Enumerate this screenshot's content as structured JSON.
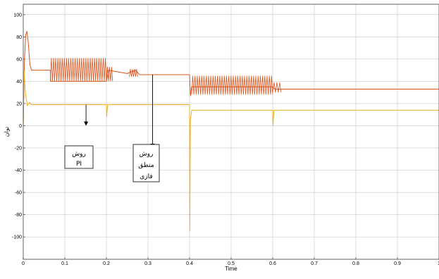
{
  "chart_data": {
    "type": "line",
    "xlabel": "Time",
    "ylabel": "توان",
    "xlim": [
      0,
      1
    ],
    "ylim": [
      -110,
      105
    ],
    "xticks": [
      "0",
      "0.1",
      "0.2",
      "0.3",
      "0.4",
      "0.5",
      "0.6",
      "0.7",
      "0.8",
      "0.9",
      "1"
    ],
    "yticks": [
      "100",
      "80",
      "60",
      "40",
      "20",
      "0",
      "-20",
      "-40",
      "-60",
      "-80",
      "-100"
    ],
    "grid": true,
    "series": [
      {
        "color": "#d9541e",
        "points": [
          [
            0.0,
            0
          ],
          [
            0.003,
            60
          ],
          [
            0.006,
            82
          ],
          [
            0.009,
            85
          ],
          [
            0.012,
            75
          ],
          [
            0.016,
            55
          ],
          [
            0.02,
            50
          ],
          [
            0.065,
            50
          ],
          [
            0.066,
            40
          ],
          [
            0.2,
            40
          ],
          [
            0.205,
            50
          ],
          [
            0.25,
            47
          ],
          [
            0.27,
            50
          ],
          [
            0.28,
            46
          ],
          [
            0.4,
            46
          ],
          [
            0.402,
            27
          ],
          [
            0.405,
            35
          ],
          [
            0.6,
            35
          ],
          [
            0.605,
            33
          ],
          [
            0.62,
            33
          ],
          [
            1.0,
            33
          ]
        ],
        "oscillations": [
          {
            "x_start": 0.065,
            "x_end": 0.2,
            "y_min": 40,
            "y_max": 61,
            "cycles": 26
          },
          {
            "x_start": 0.2,
            "x_end": 0.215,
            "y_min": 40,
            "y_max": 53,
            "cycles": 3
          },
          {
            "x_start": 0.255,
            "x_end": 0.275,
            "y_min": 44,
            "y_max": 51,
            "cycles": 4
          },
          {
            "x_start": 0.405,
            "x_end": 0.6,
            "y_min": 28,
            "y_max": 45,
            "cycles": 36
          },
          {
            "x_start": 0.6,
            "x_end": 0.62,
            "y_min": 30,
            "y_max": 39,
            "cycles": 3
          }
        ]
      },
      {
        "color": "#edb120",
        "points": [
          [
            0.0,
            0
          ],
          [
            0.002,
            50
          ],
          [
            0.005,
            30
          ],
          [
            0.01,
            18
          ],
          [
            0.015,
            21
          ],
          [
            0.02,
            19
          ],
          [
            0.2,
            19
          ],
          [
            0.2005,
            8
          ],
          [
            0.203,
            19
          ],
          [
            0.4,
            19
          ],
          [
            0.4005,
            -95
          ],
          [
            0.402,
            5
          ],
          [
            0.405,
            14
          ],
          [
            0.6,
            14
          ],
          [
            0.6005,
            0
          ],
          [
            0.603,
            14
          ],
          [
            1.0,
            14
          ]
        ]
      }
    ],
    "annotations": [
      {
        "lines": [
          "روش",
          "PI"
        ],
        "arrow_to": [
          0.151,
          0
        ]
      },
      {
        "lines": [
          "روش",
          "منطق",
          "فازی"
        ],
        "arrow_to": [
          0.311,
          -20
        ]
      }
    ]
  }
}
